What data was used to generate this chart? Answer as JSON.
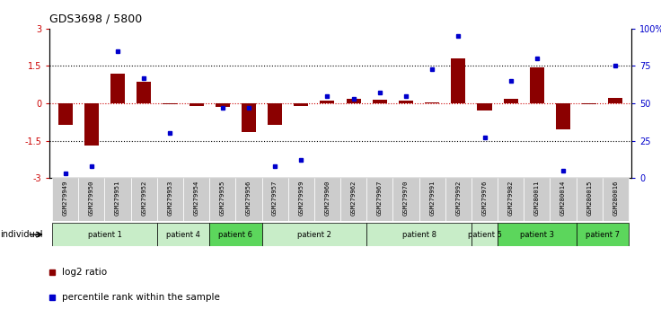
{
  "title": "GDS3698 / 5800",
  "samples": [
    "GSM279949",
    "GSM279950",
    "GSM279951",
    "GSM279952",
    "GSM279953",
    "GSM279954",
    "GSM279955",
    "GSM279956",
    "GSM279957",
    "GSM279959",
    "GSM279960",
    "GSM279962",
    "GSM279967",
    "GSM279970",
    "GSM279991",
    "GSM279992",
    "GSM279976",
    "GSM279982",
    "GSM280011",
    "GSM280014",
    "GSM280015",
    "GSM280016"
  ],
  "log2_ratio": [
    -0.85,
    -1.7,
    1.2,
    0.85,
    -0.05,
    -0.1,
    -0.15,
    -1.15,
    -0.85,
    -0.1,
    0.1,
    0.2,
    0.15,
    0.1,
    0.02,
    1.8,
    -0.3,
    0.2,
    1.45,
    -1.05,
    -0.05,
    0.22
  ],
  "percentile": [
    3,
    8,
    85,
    67,
    30,
    -1,
    47,
    47,
    8,
    12,
    55,
    53,
    57,
    55,
    73,
    95,
    27,
    65,
    80,
    5,
    -1,
    75
  ],
  "patient_groups": [
    {
      "label": "patient 1",
      "start": 0,
      "end": 4,
      "color": "#c8edc8"
    },
    {
      "label": "patient 4",
      "start": 4,
      "end": 6,
      "color": "#c8edc8"
    },
    {
      "label": "patient 6",
      "start": 6,
      "end": 8,
      "color": "#5cd65c"
    },
    {
      "label": "patient 2",
      "start": 8,
      "end": 12,
      "color": "#c8edc8"
    },
    {
      "label": "patient 8",
      "start": 12,
      "end": 16,
      "color": "#c8edc8"
    },
    {
      "label": "patient 5",
      "start": 16,
      "end": 17,
      "color": "#c8edc8"
    },
    {
      "label": "patient 3",
      "start": 17,
      "end": 20,
      "color": "#5cd65c"
    },
    {
      "label": "patient 7",
      "start": 20,
      "end": 22,
      "color": "#5cd65c"
    }
  ],
  "bar_color": "#8B0000",
  "dot_color": "#0000CC",
  "ylim_left": [
    -3,
    3
  ],
  "ylim_right": [
    0,
    100
  ],
  "yticks_left": [
    -3,
    -1.5,
    0,
    1.5,
    3
  ],
  "yticks_right": [
    0,
    25,
    50,
    75,
    100
  ],
  "ytick_labels_right": [
    "0",
    "25",
    "50",
    "75",
    "100%"
  ],
  "hline_y": [
    1.5,
    0.0,
    -1.5
  ],
  "red_line_y": 0.0,
  "legend_labels": [
    "log2 ratio",
    "percentile rank within the sample"
  ],
  "legend_colors": [
    "#8B0000",
    "#0000CC"
  ]
}
